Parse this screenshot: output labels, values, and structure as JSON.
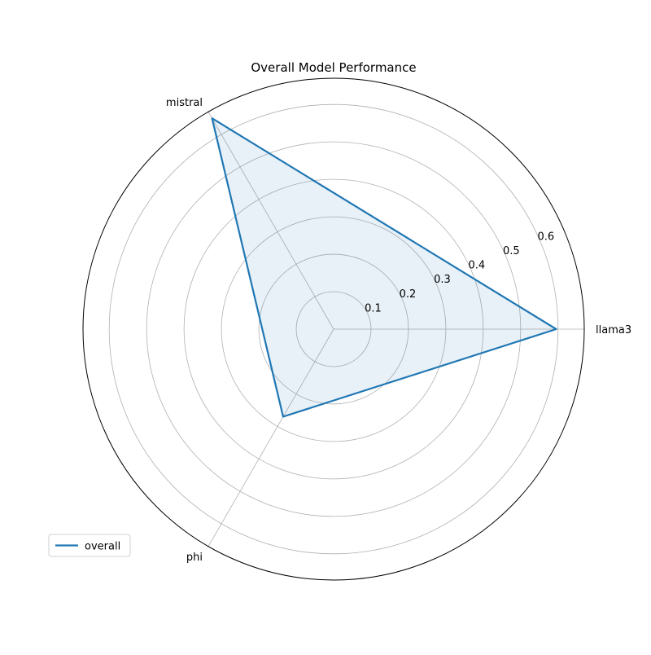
{
  "chart_data": {
    "type": "radar",
    "title": "Overall Model Performance",
    "categories": [
      "llama3",
      "mistral",
      "phi"
    ],
    "series": [
      {
        "name": "overall",
        "values": [
          0.595,
          0.65,
          0.27
        ]
      }
    ],
    "radial_ticks": [
      0.1,
      0.2,
      0.3,
      0.4,
      0.5,
      0.6
    ],
    "radial_tick_labels": [
      "0.1",
      "0.2",
      "0.3",
      "0.4",
      "0.5",
      "0.6"
    ],
    "rlim": [
      0,
      0.67
    ],
    "grid": true,
    "legend_position": "lower-left",
    "colors": {
      "line": "#1f77b4",
      "fill": "#1f77b4",
      "grid": "#b0b0b0",
      "frame": "#000000"
    }
  }
}
